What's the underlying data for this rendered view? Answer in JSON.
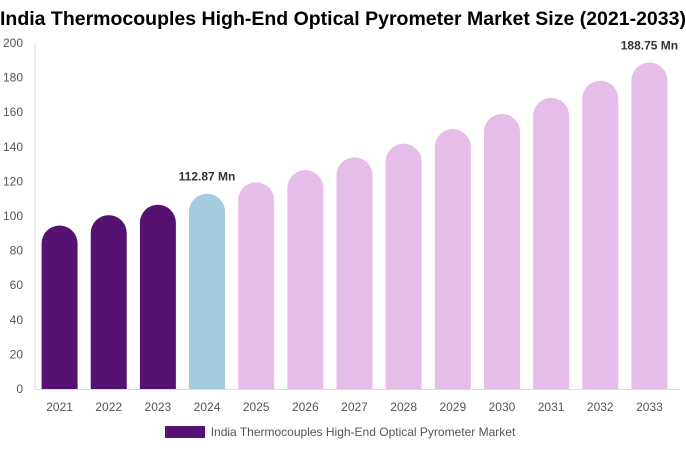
{
  "chart_data": {
    "type": "bar",
    "title": "India Thermocouples High-End Optical Pyrometer Market Size (2021-2033)",
    "categories": [
      "2021",
      "2022",
      "2023",
      "2024",
      "2025",
      "2026",
      "2027",
      "2028",
      "2029",
      "2030",
      "2031",
      "2032",
      "2033"
    ],
    "series": [
      {
        "name": "India Thermocouples High-End Optical Pyrometer Market",
        "values": [
          94.5,
          100.5,
          106.5,
          112.87,
          119.5,
          126.5,
          133.9,
          141.8,
          150.2,
          159.0,
          168.3,
          178.2,
          188.75
        ]
      }
    ],
    "data_labels": {
      "3": "112.87 Mn",
      "12": "188.75 Mn"
    },
    "bar_colors": {
      "historical": "#561270",
      "base_year": "#a5cbe0",
      "forecast": "#e6bde9"
    },
    "ylim": [
      0,
      200
    ],
    "yticks": [
      0,
      20,
      40,
      60,
      80,
      100,
      120,
      140,
      160,
      180,
      200
    ],
    "grid": false,
    "legend_position": "bottom",
    "xlabel": "",
    "ylabel": ""
  }
}
